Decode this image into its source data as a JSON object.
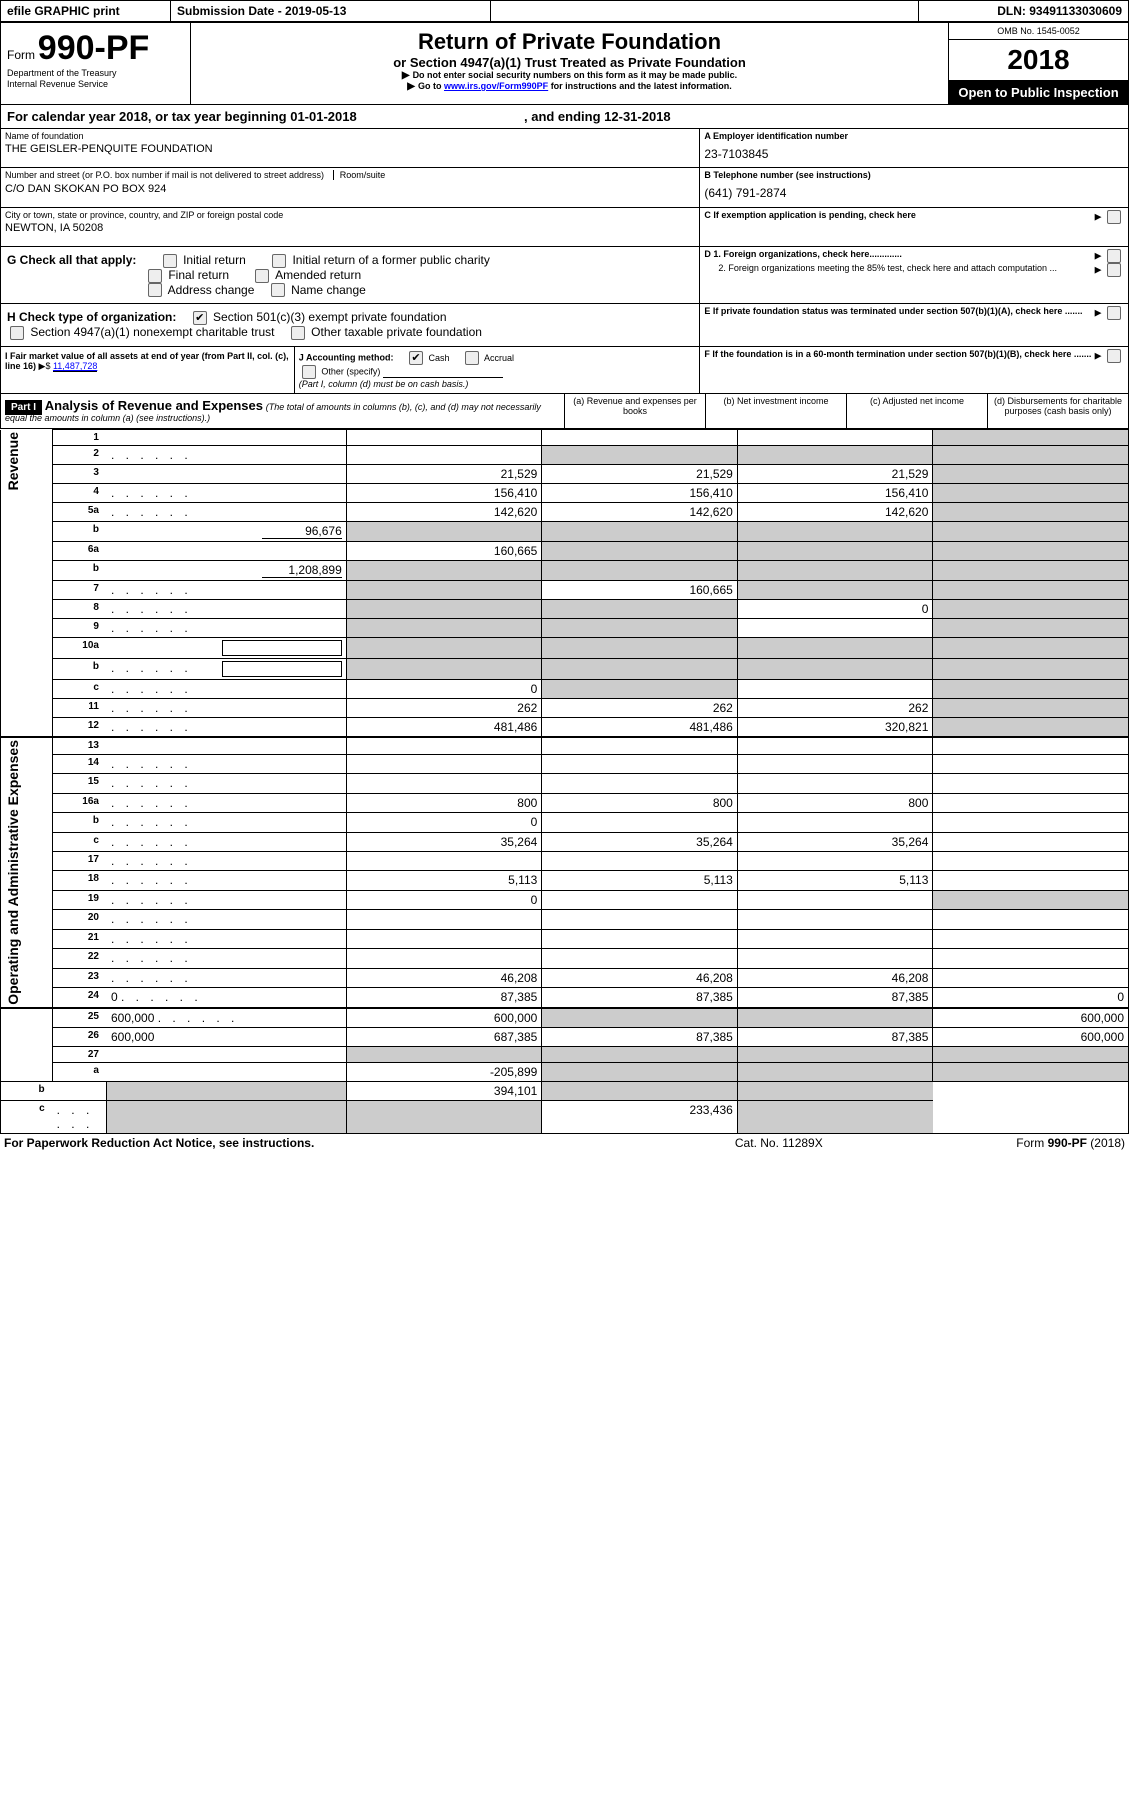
{
  "topbar": {
    "efile": "efile GRAPHIC print",
    "submission_label": "Submission Date - 2019-05-13",
    "dln_label": "DLN: 93491133030609"
  },
  "header": {
    "form_prefix": "Form",
    "form_number": "990-PF",
    "dept": "Department of the Treasury",
    "irs": "Internal Revenue Service",
    "title": "Return of Private Foundation",
    "subtitle": "or Section 4947(a)(1) Trust Treated as Private Foundation",
    "warn1": "Do not enter social security numbers on this form as it may be made public.",
    "warn2_pre": "Go to ",
    "warn2_link": "www.irs.gov/Form990PF",
    "warn2_post": " for instructions and the latest information.",
    "omb": "OMB No. 1545-0052",
    "year": "2018",
    "open": "Open to Public Inspection"
  },
  "period": {
    "line_a": "For calendar year 2018, or tax year beginning 01-01-2018",
    "line_b": ", and ending 12-31-2018"
  },
  "id": {
    "name_label": "Name of foundation",
    "name": "THE GEISLER-PENQUITE FOUNDATION",
    "addr_label": "Number and street (or P.O. box number if mail is not delivered to street address)",
    "room_label": "Room/suite",
    "addr": "C/O DAN SKOKAN PO BOX 924",
    "city_label": "City or town, state or province, country, and ZIP or foreign postal code",
    "city": "NEWTON, IA  50208",
    "ein_label": "A Employer identification number",
    "ein": "23-7103845",
    "tel_label": "B Telephone number (see instructions)",
    "tel": "(641) 791-2874",
    "c_label": "C If exemption application is pending, check here"
  },
  "g": {
    "label": "G Check all that apply:",
    "o1": "Initial return",
    "o2": "Initial return of a former public charity",
    "o3": "Final return",
    "o4": "Amended return",
    "o5": "Address change",
    "o6": "Name change"
  },
  "h": {
    "label": "H Check type of organization:",
    "o1": "Section 501(c)(3) exempt private foundation",
    "o2": "Section 4947(a)(1) nonexempt charitable trust",
    "o3": "Other taxable private foundation"
  },
  "i": {
    "label": "I Fair market value of all assets at end of year (from Part II, col. (c), line 16)",
    "val_prefix": "▶$  ",
    "val": "11,487,728"
  },
  "j": {
    "label": "J Accounting method:",
    "cash": "Cash",
    "accrual": "Accrual",
    "other": "Other (specify)",
    "note": "(Part I, column (d) must be on cash basis.)"
  },
  "right_boxes": {
    "d1": "D 1. Foreign organizations, check here.............",
    "d2": "2. Foreign organizations meeting the 85% test, check here and attach computation ...",
    "e": "E  If private foundation status was terminated under section 507(b)(1)(A), check here .......",
    "f": "F  If the foundation is in a 60-month termination under section 507(b)(1)(B), check here ......."
  },
  "part1": {
    "tag": "Part I",
    "title": "Analysis of Revenue and Expenses",
    "title_note": "(The total of amounts in columns (b), (c), and (d) may not necessarily equal the amounts in column (a) (see instructions).)",
    "col_a": "(a)   Revenue and expenses per books",
    "col_b": "(b)  Net investment income",
    "col_c": "(c)  Adjusted net income",
    "col_d": "(d)  Disbursements for charitable purposes (cash basis only)"
  },
  "sections": {
    "revenue": "Revenue",
    "oae": "Operating and Administrative Expenses"
  },
  "rows": [
    {
      "n": "1",
      "d": "",
      "a": "",
      "b": "",
      "c": "",
      "d_shade": true
    },
    {
      "n": "2",
      "d": "",
      "dots": true,
      "a": "",
      "b": "",
      "c": "",
      "d_shade": true,
      "b_shade": true,
      "c_shade": true
    },
    {
      "n": "3",
      "d": "",
      "a": "21,529",
      "b": "21,529",
      "c": "21,529",
      "d_shade": true
    },
    {
      "n": "4",
      "d": "",
      "dots": true,
      "a": "156,410",
      "b": "156,410",
      "c": "156,410",
      "d_shade": true
    },
    {
      "n": "5a",
      "d": "",
      "dots": true,
      "a": "142,620",
      "b": "142,620",
      "c": "142,620",
      "d_shade": true
    },
    {
      "n": "b",
      "d": "",
      "inline_val": "96,676",
      "a": "",
      "b": "",
      "c": "",
      "all_shade": true
    },
    {
      "n": "6a",
      "d": "",
      "a": "160,665",
      "b": "",
      "c": "",
      "b_shade": true,
      "c_shade": true,
      "d_shade": true
    },
    {
      "n": "b",
      "d": "",
      "inline_val": "1,208,899",
      "a": "",
      "b": "",
      "c": "",
      "all_shade": true
    },
    {
      "n": "7",
      "d": "",
      "dots": true,
      "a": "",
      "b": "160,665",
      "c": "",
      "a_shade": true,
      "c_shade": true,
      "d_shade": true
    },
    {
      "n": "8",
      "d": "",
      "dots": true,
      "a": "",
      "b": "",
      "c": "0",
      "a_shade": true,
      "b_shade": true,
      "d_shade": true
    },
    {
      "n": "9",
      "d": "",
      "dots": true,
      "a": "",
      "b": "",
      "c": "",
      "a_shade": true,
      "b_shade": true,
      "d_shade": true
    },
    {
      "n": "10a",
      "d": "",
      "inline_box": true,
      "a": "",
      "b": "",
      "c": "",
      "all_shade": true
    },
    {
      "n": "b",
      "d": "",
      "dots": true,
      "inline_box": true,
      "a": "",
      "b": "",
      "c": "",
      "all_shade": true
    },
    {
      "n": "c",
      "d": "",
      "dots": true,
      "a": "0",
      "b": "",
      "c": "",
      "b_shade": true,
      "d_shade": true
    },
    {
      "n": "11",
      "d": "",
      "dots": true,
      "a": "262",
      "b": "262",
      "c": "262",
      "d_shade": true
    },
    {
      "n": "12",
      "d": "",
      "dots": true,
      "a": "481,486",
      "b": "481,486",
      "c": "320,821",
      "d_shade": true,
      "bold_row": true
    },
    {
      "n": "13",
      "d": "",
      "a": "",
      "b": "",
      "c": ""
    },
    {
      "n": "14",
      "d": "",
      "dots": true,
      "a": "",
      "b": "",
      "c": ""
    },
    {
      "n": "15",
      "d": "",
      "dots": true,
      "a": "",
      "b": "",
      "c": ""
    },
    {
      "n": "16a",
      "d": "",
      "dots": true,
      "a": "800",
      "b": "800",
      "c": "800"
    },
    {
      "n": "b",
      "d": "",
      "dots": true,
      "a": "0",
      "b": "",
      "c": ""
    },
    {
      "n": "c",
      "d": "",
      "dots": true,
      "a": "35,264",
      "b": "35,264",
      "c": "35,264"
    },
    {
      "n": "17",
      "d": "",
      "dots": true,
      "a": "",
      "b": "",
      "c": ""
    },
    {
      "n": "18",
      "d": "",
      "dots": true,
      "a": "5,113",
      "b": "5,113",
      "c": "5,113"
    },
    {
      "n": "19",
      "d": "",
      "dots": true,
      "a": "0",
      "b": "",
      "c": "",
      "d_shade": true
    },
    {
      "n": "20",
      "d": "",
      "dots": true,
      "a": "",
      "b": "",
      "c": ""
    },
    {
      "n": "21",
      "d": "",
      "dots": true,
      "a": "",
      "b": "",
      "c": ""
    },
    {
      "n": "22",
      "d": "",
      "dots": true,
      "a": "",
      "b": "",
      "c": ""
    },
    {
      "n": "23",
      "d": "",
      "dots": true,
      "a": "46,208",
      "b": "46,208",
      "c": "46,208"
    },
    {
      "n": "24",
      "d": "0",
      "dots": true,
      "a": "87,385",
      "b": "87,385",
      "c": "87,385"
    },
    {
      "n": "25",
      "d": "600,000",
      "dots": true,
      "a": "600,000",
      "b": "",
      "c": "",
      "b_shade": true,
      "c_shade": true
    },
    {
      "n": "26",
      "d": "600,000",
      "a": "687,385",
      "b": "87,385",
      "c": "87,385"
    },
    {
      "n": "27",
      "d": "",
      "a": "",
      "b": "",
      "c": "",
      "all_shade": true
    },
    {
      "n": "a",
      "d": "",
      "a": "-205,899",
      "b": "",
      "c": "",
      "b_shade": true,
      "c_shade": true,
      "d_shade": true
    },
    {
      "n": "b",
      "d": "",
      "a": "",
      "b": "394,101",
      "c": "",
      "a_shade": true,
      "c_shade": true,
      "d_shade": true
    },
    {
      "n": "c",
      "d": "",
      "dots": true,
      "a": "",
      "b": "",
      "c": "233,436",
      "a_shade": true,
      "b_shade": true,
      "d_shade": true
    }
  ],
  "footer": {
    "left": "For Paperwork Reduction Act Notice, see instructions.",
    "mid": "Cat. No. 11289X",
    "right": "Form 990-PF (2018)"
  }
}
